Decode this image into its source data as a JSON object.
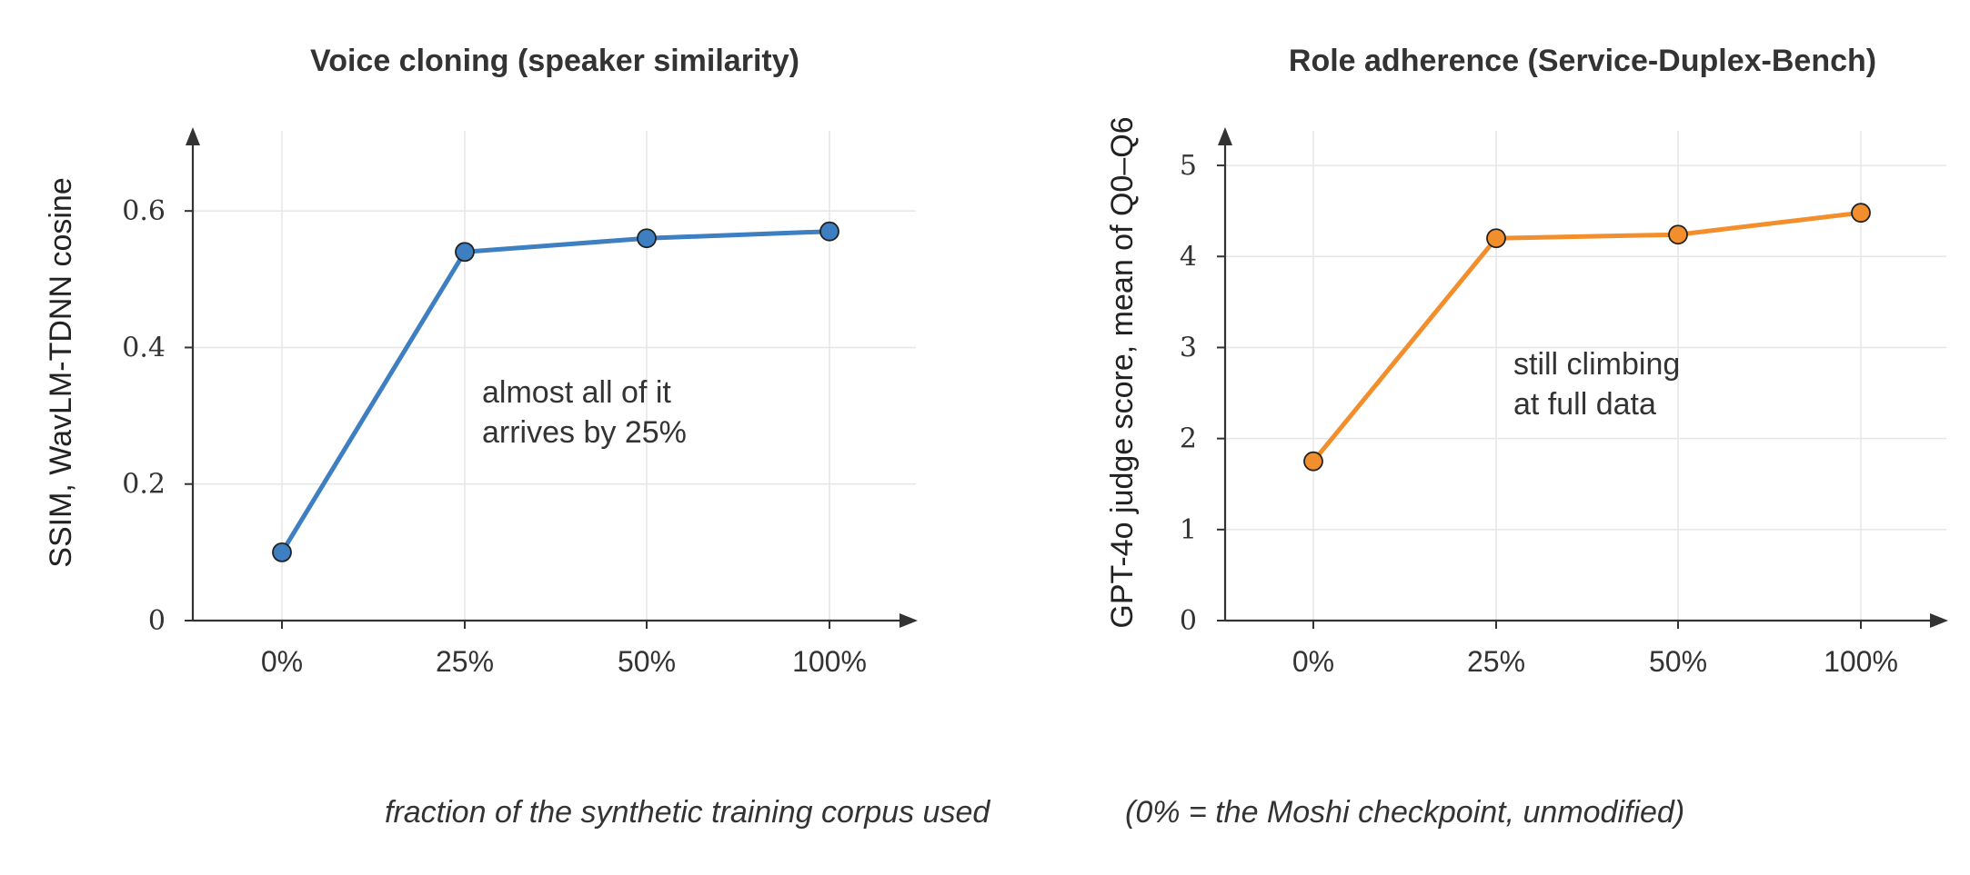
{
  "chart_data": [
    {
      "type": "line",
      "title": "Voice cloning (speaker similarity)",
      "ylabel": "SSIM, WavLM-TDNN cosine",
      "categories": [
        "0%",
        "25%",
        "50%",
        "100%"
      ],
      "series": [
        {
          "values": [
            0.1,
            0.54,
            0.56,
            0.57
          ],
          "color": "#3d7fc1"
        }
      ],
      "ylim": [
        0,
        0.72
      ],
      "yticks": [
        0,
        0.2,
        0.4,
        0.6
      ],
      "ytick_labels": [
        "0",
        "0.2",
        "0.4",
        "0.6"
      ],
      "grid": true,
      "annotation": [
        "almost all of it",
        "arrives by 25%"
      ]
    },
    {
      "type": "line",
      "title": "Role adherence (Service-Duplex-Bench)",
      "ylabel": "GPT-4o judge score, mean of Q0–Q6",
      "categories": [
        "0%",
        "25%",
        "50%",
        "100%"
      ],
      "series": [
        {
          "values": [
            1.75,
            4.2,
            4.24,
            4.48
          ],
          "color": "#f28e2b"
        }
      ],
      "ylim": [
        0,
        5.4
      ],
      "yticks": [
        0,
        1,
        2,
        3,
        4,
        5
      ],
      "ytick_labels": [
        "0",
        "1",
        "2",
        "3",
        "4",
        "5"
      ],
      "grid": true,
      "annotation": [
        "still climbing",
        "at full data"
      ]
    }
  ],
  "footer": {
    "xlabel": "fraction of the synthetic training corpus used",
    "note": "(0% = the Moshi checkpoint, unmodified)"
  }
}
